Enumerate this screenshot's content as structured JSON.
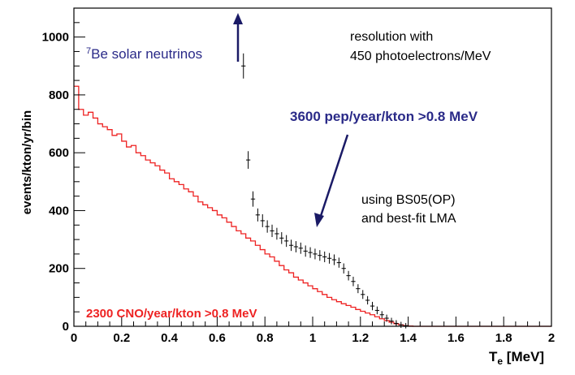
{
  "chart_data": {
    "type": "histogram",
    "xlabel": "T",
    "xlabel_sub": "e",
    "xlabel_unit": " [MeV]",
    "ylabel": "events/kton/yr/bin",
    "xlim": [
      0,
      2
    ],
    "ylim": [
      0,
      1100
    ],
    "x_ticks": [
      "0",
      "0.2",
      "0.4",
      "0.6",
      "0.8",
      "1",
      "1.2",
      "1.4",
      "1.6",
      "1.8",
      "2"
    ],
    "y_ticks": [
      "0",
      "200",
      "400",
      "600",
      "800",
      "1000"
    ],
    "colors": {
      "cno": "#ee2222",
      "pep": "#000000",
      "blue_text": "#2a2a88",
      "arrow": "#1a1a66"
    },
    "series": [
      {
        "name": "2300 CNO/year/kton >0.8 MeV",
        "style": "step",
        "bin_width": 0.02,
        "values": [
          830,
          750,
          730,
          740,
          720,
          700,
          690,
          680,
          660,
          665,
          640,
          620,
          625,
          600,
          590,
          575,
          565,
          555,
          540,
          530,
          510,
          500,
          490,
          475,
          465,
          450,
          430,
          420,
          410,
          400,
          385,
          375,
          360,
          345,
          330,
          320,
          305,
          295,
          280,
          265,
          250,
          240,
          225,
          210,
          195,
          185,
          170,
          160,
          150,
          140,
          130,
          120,
          110,
          100,
          92,
          85,
          78,
          72,
          66,
          58,
          52,
          46,
          40,
          33,
          26,
          20,
          14,
          9,
          5,
          2,
          1,
          0,
          0,
          0,
          0,
          0,
          0,
          0,
          0,
          0,
          0,
          0,
          0,
          0,
          0,
          0,
          0,
          0,
          0,
          0,
          0,
          0,
          0,
          0,
          0,
          0,
          0,
          0,
          0,
          0
        ]
      },
      {
        "name": "3600 pep/year/kton >0.8 MeV",
        "style": "errorbar",
        "x": [
          0.71,
          0.73,
          0.75,
          0.77,
          0.79,
          0.81,
          0.83,
          0.85,
          0.87,
          0.89,
          0.91,
          0.93,
          0.95,
          0.97,
          0.99,
          1.01,
          1.03,
          1.05,
          1.07,
          1.09,
          1.11,
          1.13,
          1.15,
          1.17,
          1.19,
          1.21,
          1.23,
          1.25,
          1.27,
          1.29,
          1.31,
          1.33,
          1.35,
          1.37,
          1.39
        ],
        "values": [
          900,
          575,
          440,
          385,
          365,
          345,
          330,
          320,
          305,
          295,
          280,
          275,
          270,
          260,
          255,
          250,
          245,
          240,
          235,
          230,
          220,
          200,
          175,
          155,
          130,
          110,
          90,
          70,
          55,
          40,
          28,
          18,
          10,
          5,
          2
        ],
        "errors": [
          35,
          22,
          18,
          14,
          14,
          13,
          13,
          12,
          12,
          12,
          11,
          11,
          11,
          11,
          10,
          10,
          10,
          10,
          10,
          10,
          9,
          9,
          8,
          8,
          7,
          7,
          6,
          6,
          5,
          4,
          4,
          3,
          3,
          2,
          1
        ]
      }
    ],
    "annotations": {
      "be7_sup": "7",
      "be7_text": "Be solar neutrinos",
      "pep_label": "3600 pep/year/kton >0.8 MeV",
      "cno_label": "2300 CNO/year/kton >0.8 MeV",
      "resolution_line1": "resolution with",
      "resolution_line2": "450 photoelectrons/MeV",
      "model_line1": "using BS05(OP)",
      "model_line2": "and best-fit LMA"
    }
  }
}
